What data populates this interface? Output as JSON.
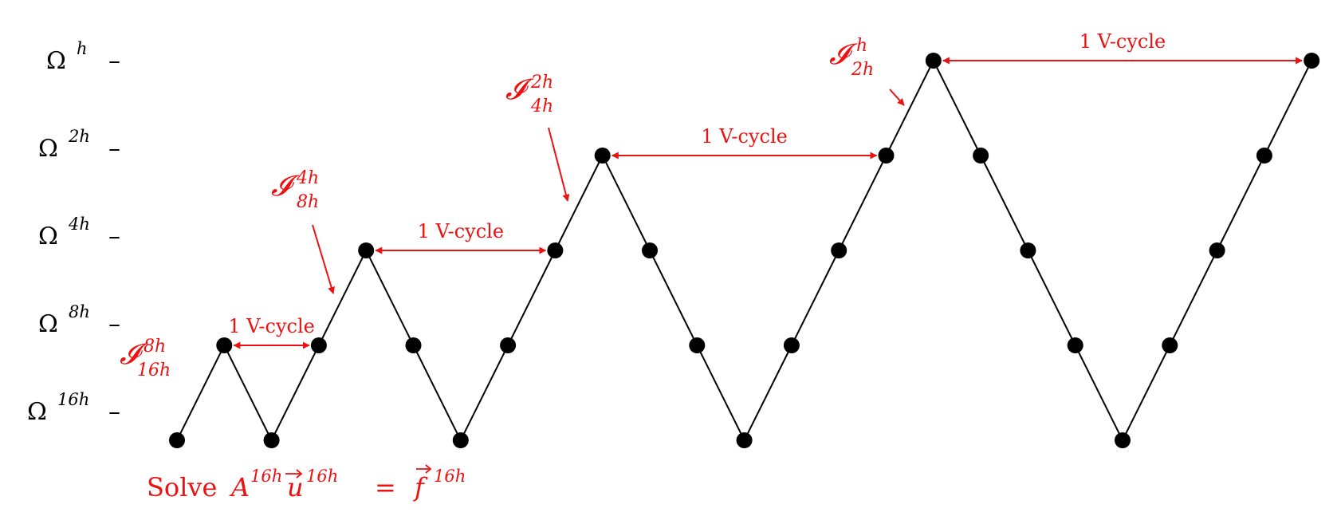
{
  "levels": [
    {
      "id": "h",
      "omega": "Ω",
      "sup": "h"
    },
    {
      "id": "2h",
      "omega": "Ω",
      "sup": "2h"
    },
    {
      "id": "4h",
      "omega": "Ω",
      "sup": "4h"
    },
    {
      "id": "8h",
      "omega": "Ω",
      "sup": "8h"
    },
    {
      "id": "16h",
      "omega": "Ω",
      "sup": "16h"
    }
  ],
  "tick_mark": "–",
  "path_levels": [
    4,
    3,
    4,
    3,
    2,
    3,
    4,
    3,
    2,
    1,
    2,
    3,
    4,
    3,
    2,
    1,
    0,
    1,
    2,
    3,
    4,
    3,
    2,
    1,
    0
  ],
  "vcycle_label": "1 V-cycle",
  "vcycles": [
    {
      "level": 3,
      "from_node": 1,
      "to_node": 3
    },
    {
      "level": 2,
      "from_node": 4,
      "to_node": 8
    },
    {
      "level": 1,
      "from_node": 9,
      "to_node": 15
    },
    {
      "level": 0,
      "from_node": 16,
      "to_node": 24
    }
  ],
  "interpolations": [
    {
      "symbol": "𝓘",
      "sup": "8h",
      "sub": "16h"
    },
    {
      "symbol": "𝓘",
      "sup": "4h",
      "sub": "8h"
    },
    {
      "symbol": "𝓘",
      "sup": "2h",
      "sub": "4h"
    },
    {
      "symbol": "𝓘",
      "sup": "h",
      "sub": "2h"
    }
  ],
  "solve": {
    "word": "Solve",
    "A": "A",
    "A_sup": "16h",
    "u": "u",
    "u_sup": "16h",
    "eq": "=",
    "f": "f",
    "f_sup": "16h"
  },
  "colors": {
    "accent": "#ee1111",
    "ink": "#000000"
  }
}
